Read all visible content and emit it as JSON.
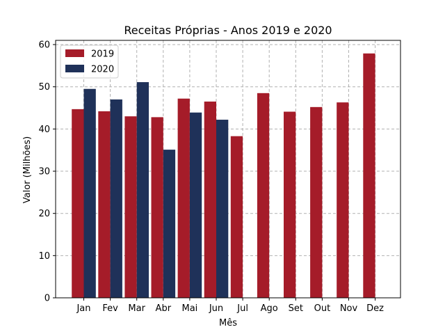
{
  "chart_data": {
    "type": "bar",
    "title": "Receitas Próprias - Anos 2019 e 2020",
    "xlabel": "Mês",
    "ylabel": "Valor (Milhões)",
    "categories": [
      "Jan",
      "Fev",
      "Mar",
      "Abr",
      "Mai",
      "Jun",
      "Jul",
      "Ago",
      "Set",
      "Out",
      "Nov",
      "Dez"
    ],
    "series": [
      {
        "name": "2019",
        "color": "#a51c29",
        "values": [
          44.7,
          44.2,
          43.0,
          42.8,
          47.2,
          46.5,
          38.3,
          48.5,
          44.1,
          45.2,
          46.3,
          57.9
        ]
      },
      {
        "name": "2020",
        "color": "#1f3159",
        "values": [
          49.5,
          47.0,
          51.1,
          35.1,
          43.9,
          42.2,
          null,
          null,
          null,
          null,
          null,
          null
        ]
      }
    ],
    "ylim": [
      0,
      61
    ],
    "yticks": [
      0,
      10,
      20,
      30,
      40,
      50,
      60
    ],
    "grid": true,
    "legend_position": "top-left"
  }
}
